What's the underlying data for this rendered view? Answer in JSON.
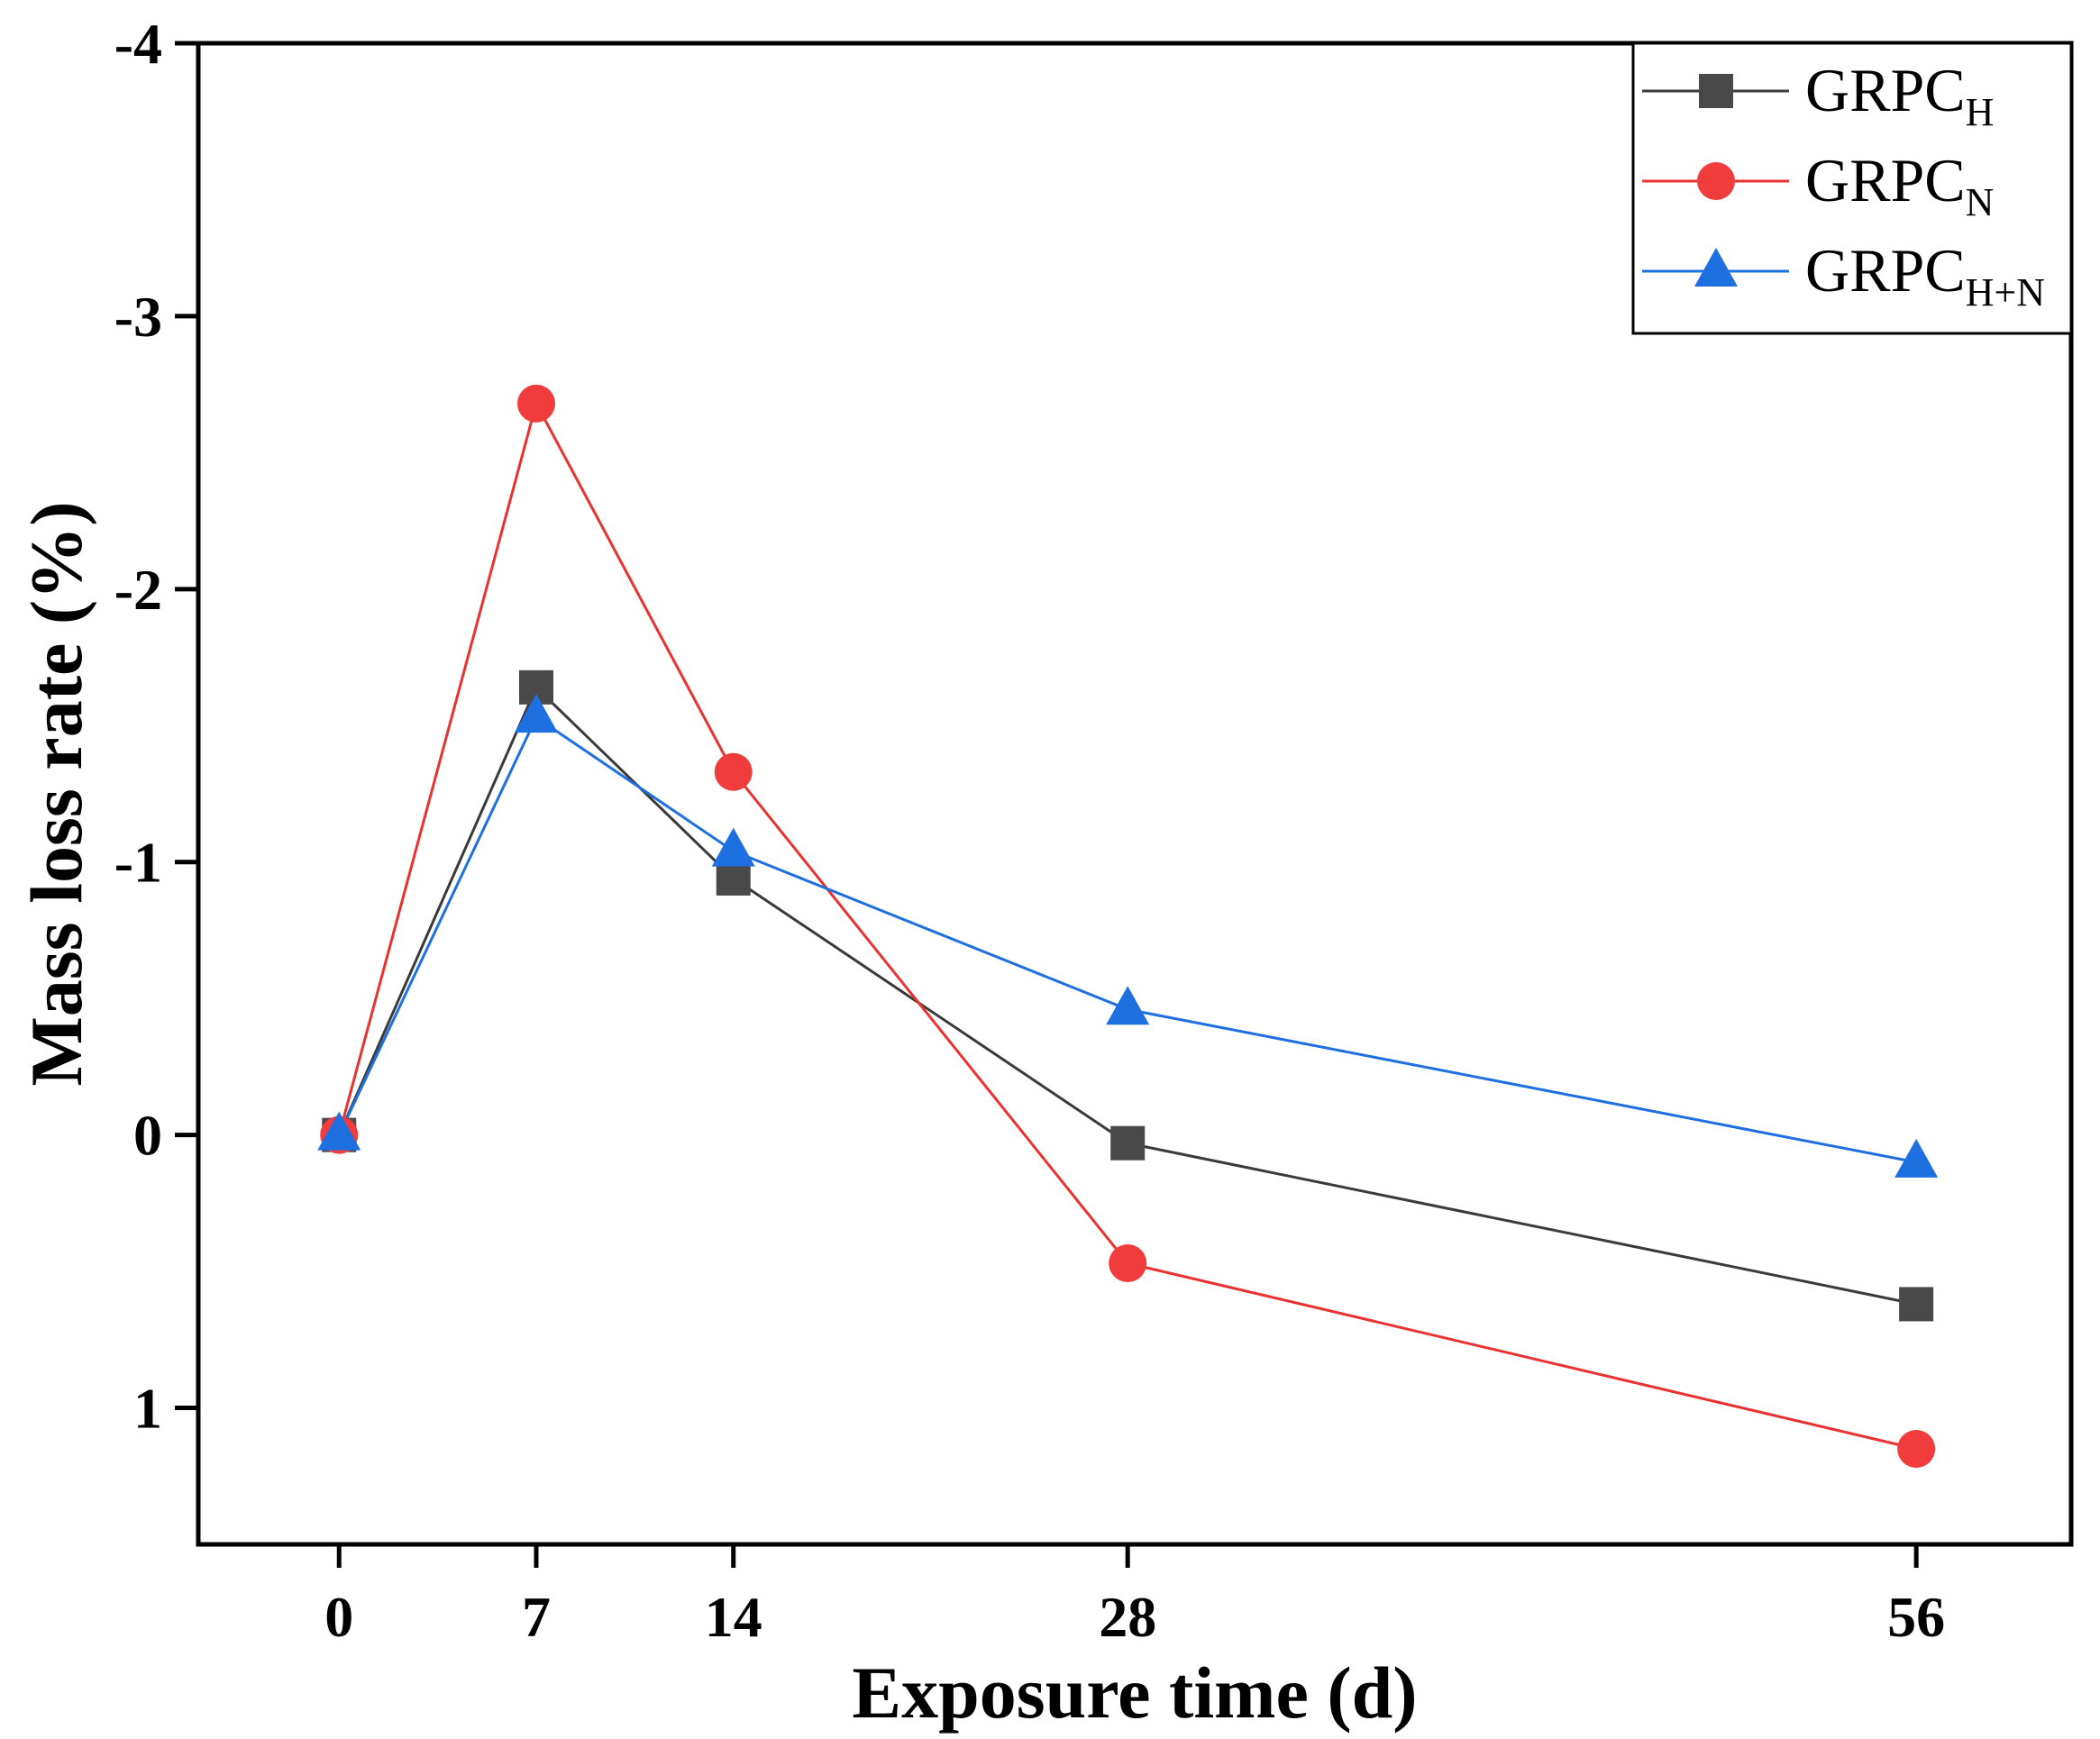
{
  "chart_data": {
    "type": "line",
    "title": "",
    "xlabel": "Exposure time (d)",
    "ylabel": "Mass loss rate (%)",
    "x": [
      0,
      7,
      14,
      28,
      56
    ],
    "x_tick_labels": [
      "0",
      "7",
      "14",
      "28",
      "56"
    ],
    "xlim": [
      -5,
      61.5
    ],
    "ylim": [
      1.5,
      -4
    ],
    "y_axis_inverted": true,
    "y_ticks": [
      -4,
      -3,
      -2,
      -1,
      0,
      1
    ],
    "y_tick_labels": [
      "-4",
      "-3",
      "-2",
      "-1",
      "0",
      "1"
    ],
    "grid": false,
    "legend_position": "top-right",
    "series": [
      {
        "name": "GRPCH",
        "label_main": "GRPC",
        "label_sub": "H",
        "marker": "square",
        "color": "#494949",
        "line_color": "#3a3a3a",
        "values": [
          0,
          -1.64,
          -0.94,
          0.03,
          0.62
        ]
      },
      {
        "name": "GRPCN",
        "label_main": "GRPC",
        "label_sub": "N",
        "marker": "circle",
        "color": "#f03c3c",
        "line_color": "#e83232",
        "values": [
          0,
          -2.68,
          -1.33,
          0.47,
          1.15
        ]
      },
      {
        "name": "GRPCH+N",
        "label_main": "GRPC",
        "label_sub": "H+N",
        "marker": "triangle",
        "color": "#1e6fe0",
        "line_color": "#1e6fe0",
        "values": [
          0,
          -1.53,
          -1.04,
          -0.46,
          0.1
        ]
      }
    ]
  }
}
